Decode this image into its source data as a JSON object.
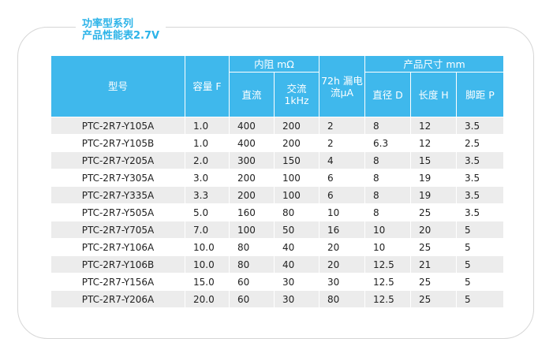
{
  "title": {
    "line1": "功率型系列",
    "line2": "产品性能表2.7V"
  },
  "headers": {
    "model": "型号",
    "capacity": "容量 F",
    "resistance_group": "内阻 mΩ",
    "dc": "直流",
    "ac": "交流\n1kHz",
    "leakage": "72h 漏电\n流μA",
    "size_group": "产品尺寸 mm",
    "diameter": "直径 D",
    "length": "长度 H",
    "pitch": "脚距 P"
  },
  "rows": [
    [
      "PTC-2R7-Y105A",
      "1.0",
      "400",
      "200",
      "2",
      "8",
      "12",
      "3.5"
    ],
    [
      "PTC-2R7-Y105B",
      "1.0",
      "400",
      "200",
      "2",
      "6.3",
      "12",
      "2.5"
    ],
    [
      "PTC-2R7-Y205A",
      "2.0",
      "300",
      "150",
      "4",
      "8",
      "15",
      "3.5"
    ],
    [
      "PTC-2R7-Y305A",
      "3.0",
      "200",
      "100",
      "6",
      "8",
      "19",
      "3.5"
    ],
    [
      "PTC-2R7-Y335A",
      "3.3",
      "200",
      "100",
      "6",
      "8",
      "19",
      "3.5"
    ],
    [
      "PTC-2R7-Y505A",
      "5.0",
      "160",
      "80",
      "10",
      "8",
      "25",
      "3.5"
    ],
    [
      "PTC-2R7-Y705A",
      "7.0",
      "100",
      "50",
      "16",
      "10",
      "20",
      "5"
    ],
    [
      "PTC-2R7-Y106A",
      "10.0",
      "80",
      "40",
      "20",
      "10",
      "25",
      "5"
    ],
    [
      "PTC-2R7-Y106B",
      "10.0",
      "80",
      "40",
      "20",
      "12.5",
      "21",
      "5"
    ],
    [
      "PTC-2R7-Y156A",
      "15.0",
      "60",
      "30",
      "30",
      "12.5",
      "25",
      "5"
    ],
    [
      "PTC-2R7-Y206A",
      "20.0",
      "60",
      "30",
      "80",
      "12.5",
      "25",
      "5"
    ]
  ],
  "colors": {
    "header_bg": "#3fb8ec",
    "title": "#2bb3e8",
    "stripe": "#ececec"
  }
}
